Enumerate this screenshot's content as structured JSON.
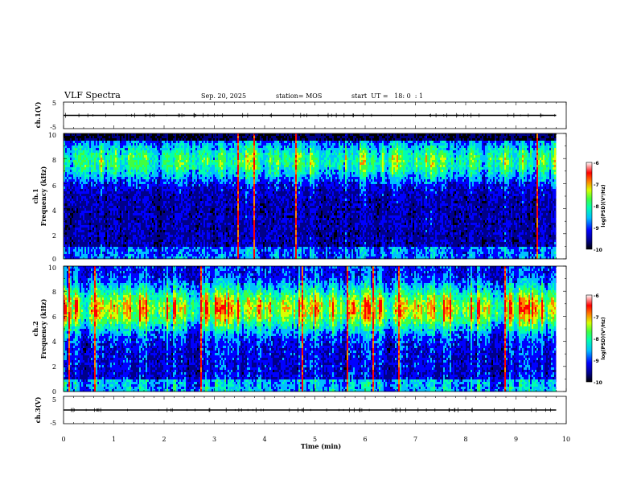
{
  "header": {
    "title": "VLF Spectra",
    "date": "Sep. 20, 2025",
    "station": "station= MOS",
    "start": "start  UT =   18: 0  : 1"
  },
  "colors": {
    "background": "#ffffff",
    "colormap": [
      "#000000",
      "#00008a",
      "#0000ff",
      "#00bfff",
      "#00ffb0",
      "#40ff40",
      "#d8ff00",
      "#ff8000",
      "#ff0000",
      "#ffffff"
    ]
  },
  "chart_data": [
    {
      "type": "line",
      "name": "ch1-waveform",
      "ylabel": "ch.1(V)",
      "ylim": [
        -5,
        5
      ],
      "y_ticks": [
        "5",
        "-5"
      ],
      "baseline": 0,
      "xlim": [
        0,
        10
      ]
    },
    {
      "type": "heatmap",
      "name": "ch1-spectrogram",
      "ylabel_top": "ch.1",
      "ylabel": "Frequency (kHz)",
      "ylim": [
        0,
        10
      ],
      "y_ticks": [
        "0",
        "2",
        "4",
        "6",
        "8",
        "10"
      ],
      "xlim": [
        0,
        10
      ],
      "data_extent_min": 9.8,
      "colorbar": {
        "label": "log(PSD)(V²/Hz)",
        "range": [
          -10,
          -6
        ],
        "ticks": [
          "-6",
          "-7",
          "-8",
          "-9",
          "-10"
        ]
      }
    },
    {
      "type": "heatmap",
      "name": "ch2-spectrogram",
      "ylabel_top": "ch.2",
      "ylabel": "Frequency (kHz)",
      "ylim": [
        0,
        10
      ],
      "y_ticks": [
        "0",
        "2",
        "4",
        "6",
        "8",
        "10"
      ],
      "xlim": [
        0,
        10
      ],
      "data_extent_min": 9.8,
      "colorbar": {
        "label": "log(PSD)(V²/Hz)",
        "range": [
          -10,
          -6
        ],
        "ticks": [
          "-6",
          "-7",
          "-8",
          "-9",
          "-10"
        ]
      }
    },
    {
      "type": "line",
      "name": "ch3-waveform",
      "ylabel": "ch.3(V)",
      "ylim": [
        -5,
        5
      ],
      "y_ticks": [
        "5",
        "-5"
      ],
      "baseline": 0,
      "xlim": [
        0,
        10
      ]
    }
  ],
  "x_axis": {
    "label": "Time (min)",
    "ticks": [
      "0",
      "1",
      "2",
      "3",
      "4",
      "5",
      "6",
      "7",
      "8",
      "9",
      "10"
    ]
  }
}
